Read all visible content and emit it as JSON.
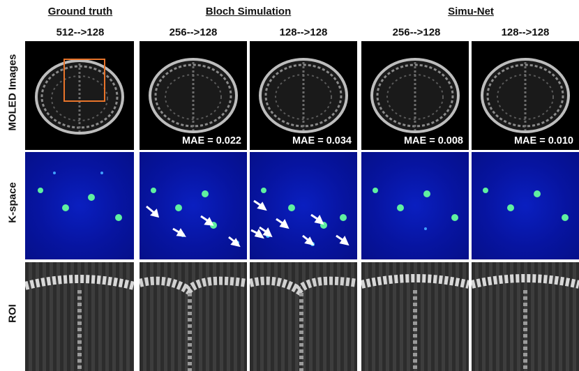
{
  "headers": {
    "ground_truth": "Ground truth",
    "bloch": "Bloch Simulation",
    "simunet": "Simu-Net"
  },
  "subheaders": [
    "512-->128",
    "256-->128",
    "128-->128",
    "256-->128",
    "128-->128"
  ],
  "row_labels": {
    "moled": "MOLED  Images",
    "kspace": "K-space",
    "roi": "ROI"
  },
  "mae_labels": [
    "",
    "MAE = 0.022",
    "MAE = 0.034",
    "MAE = 0.008",
    "MAE = 0.010"
  ],
  "colors": {
    "roi_box": "#e8742a",
    "kspace_bg": "#0714a0",
    "arrow": "#ffffff"
  }
}
